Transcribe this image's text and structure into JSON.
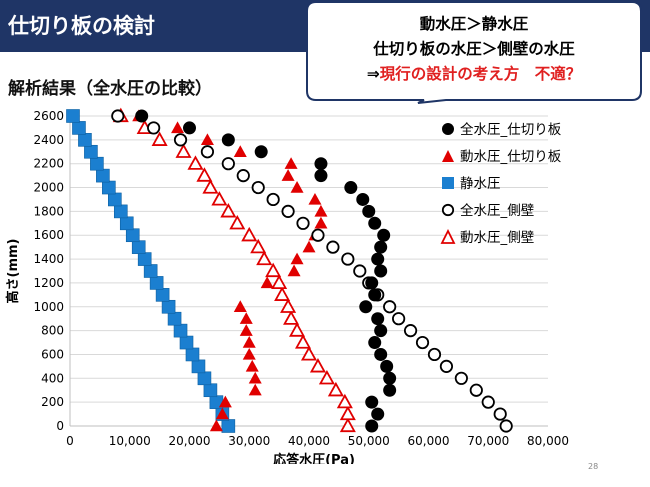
{
  "header": {
    "title": "仕切り板の検討",
    "bg_color": "#1f3566"
  },
  "subtitle": "解析結果（全水圧の比較）",
  "callout": {
    "line1": "動水圧＞静水圧",
    "line2": "仕切り板の水圧＞側壁の水圧",
    "line3_arrow": "⇒",
    "line3_red": "現行の設計の考え方　不適？"
  },
  "page_number": "28",
  "legend": {
    "items": [
      {
        "label": "全水圧_仕切り板",
        "symbol": "circle-filled",
        "color": "#000000"
      },
      {
        "label": "動水圧_仕切り板",
        "symbol": "triangle-filled",
        "color": "#e00000"
      },
      {
        "label": "静水圧",
        "symbol": "square-filled",
        "color": "#1b7fd0"
      },
      {
        "label": "全水圧_側壁",
        "symbol": "circle-open",
        "color": "#000000"
      },
      {
        "label": "動水圧_側壁",
        "symbol": "triangle-open",
        "color": "#e00000"
      }
    ]
  },
  "chart_data": {
    "type": "scatter",
    "xlabel": "応答水圧(Pa)",
    "ylabel": "高さ(mm)",
    "xlim": [
      0,
      80000
    ],
    "ylim": [
      0,
      2600
    ],
    "x_ticks": [
      0,
      10000,
      20000,
      30000,
      40000,
      50000,
      60000,
      70000,
      80000
    ],
    "x_tick_labels": [
      "0",
      "10,000",
      "20,000",
      "30,000",
      "40,000",
      "50,000",
      "60,000",
      "70,000",
      "80,000"
    ],
    "y_ticks": [
      0,
      200,
      400,
      600,
      800,
      1000,
      1200,
      1400,
      1600,
      1800,
      2000,
      2200,
      2400,
      2600
    ],
    "y_tick_labels": [
      "0",
      "200",
      "400",
      "600",
      "800",
      "1000",
      "1200",
      "1400",
      "1600",
      "1800",
      "2000",
      "2200",
      "2400",
      "2600"
    ],
    "grid": "horizontal",
    "legend_position": "right",
    "series": [
      {
        "name": "全水圧_仕切り板",
        "marker": "circle-filled",
        "color": "#000000",
        "points": [
          [
            50500,
            0
          ],
          [
            51500,
            100
          ],
          [
            50500,
            200
          ],
          [
            53500,
            300
          ],
          [
            53500,
            400
          ],
          [
            53000,
            500
          ],
          [
            52000,
            600
          ],
          [
            51000,
            700
          ],
          [
            52000,
            800
          ],
          [
            51500,
            900
          ],
          [
            49500,
            1000
          ],
          [
            51000,
            1100
          ],
          [
            50500,
            1200
          ],
          [
            52000,
            1300
          ],
          [
            51500,
            1400
          ],
          [
            52000,
            1500
          ],
          [
            52500,
            1600
          ],
          [
            51000,
            1700
          ],
          [
            50000,
            1800
          ],
          [
            49000,
            1900
          ],
          [
            47000,
            2000
          ],
          [
            42000,
            2100
          ],
          [
            42000,
            2200
          ],
          [
            32000,
            2300
          ],
          [
            26500,
            2400
          ],
          [
            20000,
            2500
          ],
          [
            12000,
            2600
          ]
        ]
      },
      {
        "name": "動水圧_仕切り板",
        "marker": "triangle-filled",
        "color": "#e00000",
        "points": [
          [
            24500,
            0
          ],
          [
            25500,
            100
          ],
          [
            26000,
            200
          ],
          [
            31000,
            300
          ],
          [
            31000,
            400
          ],
          [
            30500,
            500
          ],
          [
            30000,
            600
          ],
          [
            30000,
            700
          ],
          [
            29500,
            800
          ],
          [
            29500,
            900
          ],
          [
            28500,
            1000
          ],
          [
            33000,
            1200
          ],
          [
            37500,
            1300
          ],
          [
            38000,
            1400
          ],
          [
            40000,
            1500
          ],
          [
            41000,
            1600
          ],
          [
            42000,
            1700
          ],
          [
            42000,
            1800
          ],
          [
            41000,
            1900
          ],
          [
            38000,
            2000
          ],
          [
            36500,
            2100
          ],
          [
            37000,
            2200
          ],
          [
            28500,
            2300
          ],
          [
            23000,
            2400
          ],
          [
            18000,
            2500
          ],
          [
            11500,
            2600
          ]
        ]
      },
      {
        "name": "静水圧",
        "marker": "square-filled",
        "color": "#1b7fd0",
        "points": [
          [
            26500,
            0
          ],
          [
            25500,
            100
          ],
          [
            24500,
            200
          ],
          [
            23500,
            300
          ],
          [
            22500,
            400
          ],
          [
            21500,
            500
          ],
          [
            20500,
            600
          ],
          [
            19500,
            700
          ],
          [
            18500,
            800
          ],
          [
            17500,
            900
          ],
          [
            16500,
            1000
          ],
          [
            15500,
            1100
          ],
          [
            14500,
            1200
          ],
          [
            13500,
            1300
          ],
          [
            12500,
            1400
          ],
          [
            11500,
            1500
          ],
          [
            10500,
            1600
          ],
          [
            9500,
            1700
          ],
          [
            8500,
            1800
          ],
          [
            7500,
            1900
          ],
          [
            6500,
            2000
          ],
          [
            5500,
            2100
          ],
          [
            4500,
            2200
          ],
          [
            3500,
            2300
          ],
          [
            2500,
            2400
          ],
          [
            1500,
            2500
          ],
          [
            500,
            2600
          ]
        ]
      },
      {
        "name": "全水圧_側壁",
        "marker": "circle-open",
        "color": "#000000",
        "points": [
          [
            73000,
            0
          ],
          [
            72000,
            100
          ],
          [
            70000,
            200
          ],
          [
            68000,
            300
          ],
          [
            65500,
            400
          ],
          [
            63000,
            500
          ],
          [
            61000,
            600
          ],
          [
            59000,
            700
          ],
          [
            57000,
            800
          ],
          [
            55000,
            900
          ],
          [
            53500,
            1000
          ],
          [
            51500,
            1100
          ],
          [
            50000,
            1200
          ],
          [
            48500,
            1300
          ],
          [
            46500,
            1400
          ],
          [
            44000,
            1500
          ],
          [
            41500,
            1600
          ],
          [
            39000,
            1700
          ],
          [
            36500,
            1800
          ],
          [
            34000,
            1900
          ],
          [
            31500,
            2000
          ],
          [
            29000,
            2100
          ],
          [
            26500,
            2200
          ],
          [
            23000,
            2300
          ],
          [
            18500,
            2400
          ],
          [
            14000,
            2500
          ],
          [
            8000,
            2600
          ]
        ]
      },
      {
        "name": "動水圧_側壁",
        "marker": "triangle-open",
        "color": "#e00000",
        "points": [
          [
            46500,
            0
          ],
          [
            46500,
            100
          ],
          [
            46000,
            200
          ],
          [
            44500,
            300
          ],
          [
            43000,
            400
          ],
          [
            41500,
            500
          ],
          [
            40000,
            600
          ],
          [
            39000,
            700
          ],
          [
            38000,
            800
          ],
          [
            37000,
            900
          ],
          [
            36500,
            1000
          ],
          [
            35500,
            1100
          ],
          [
            35000,
            1200
          ],
          [
            34000,
            1300
          ],
          [
            32500,
            1400
          ],
          [
            31500,
            1500
          ],
          [
            30000,
            1600
          ],
          [
            28000,
            1700
          ],
          [
            26500,
            1800
          ],
          [
            25000,
            1900
          ],
          [
            23500,
            2000
          ],
          [
            22500,
            2100
          ],
          [
            21000,
            2200
          ],
          [
            19000,
            2300
          ],
          [
            15000,
            2400
          ],
          [
            12500,
            2500
          ],
          [
            8500,
            2600
          ]
        ]
      }
    ]
  }
}
